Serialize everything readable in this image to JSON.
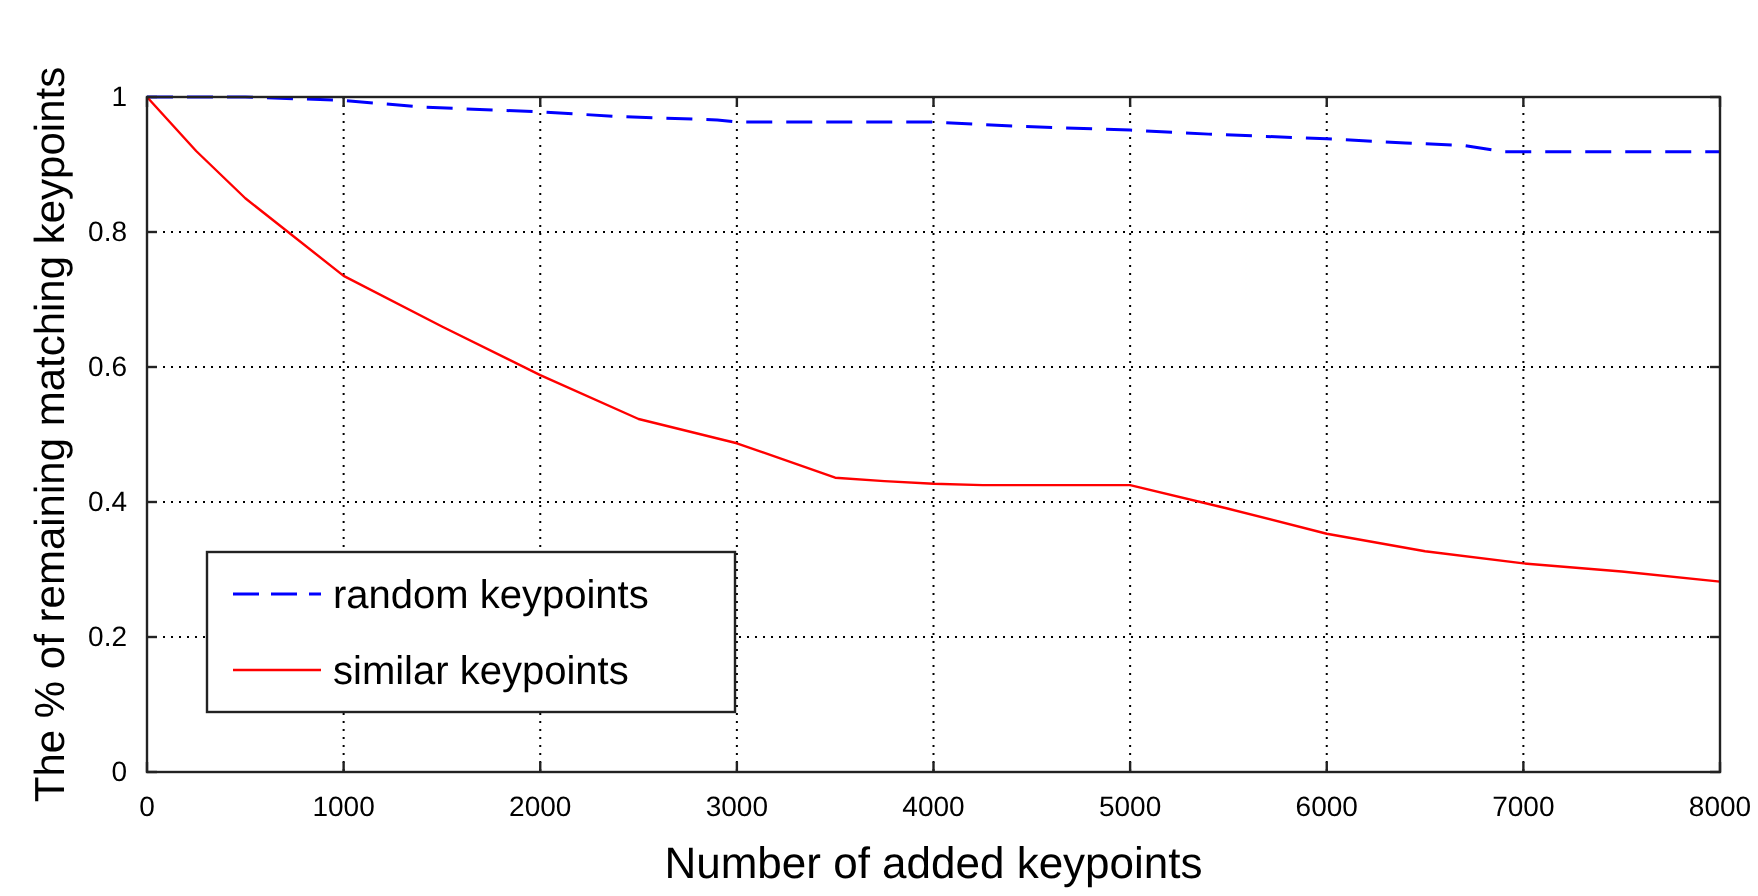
{
  "chart_data": {
    "type": "line",
    "xlabel": "Number of added keypoints",
    "ylabel": "The % of remaining matching keypoints",
    "xlim": [
      0,
      8000
    ],
    "ylim": [
      0,
      1
    ],
    "xticks": [
      0,
      1000,
      2000,
      3000,
      4000,
      5000,
      6000,
      7000,
      8000
    ],
    "yticks": [
      0,
      0.2,
      0.4,
      0.6,
      0.8,
      1
    ],
    "grid": true,
    "legend": "bottom left",
    "series": [
      {
        "name": "random keypoints",
        "color": "#0000ff",
        "line_style": "dashed",
        "x": [
          0,
          500,
          1000,
          1400,
          2000,
          2400,
          2900,
          3000,
          4000,
          4400,
          5000,
          5400,
          6000,
          6400,
          6700,
          6900,
          8000
        ],
        "values": [
          1.0,
          1.0,
          0.995,
          0.985,
          0.978,
          0.971,
          0.966,
          0.963,
          0.963,
          0.957,
          0.951,
          0.945,
          0.938,
          0.932,
          0.928,
          0.919,
          0.919
        ]
      },
      {
        "name": "similar keypoints",
        "color": "#ff0000",
        "line_style": "solid",
        "x": [
          0,
          250,
          500,
          1000,
          1500,
          2000,
          2500,
          3000,
          3500,
          3750,
          4000,
          4250,
          5000,
          5500,
          6000,
          6500,
          7000,
          7500,
          8000
        ],
        "values": [
          1.0,
          0.92,
          0.85,
          0.735,
          0.66,
          0.588,
          0.523,
          0.487,
          0.436,
          0.431,
          0.427,
          0.425,
          0.425,
          0.39,
          0.353,
          0.327,
          0.309,
          0.297,
          0.282
        ]
      }
    ]
  }
}
